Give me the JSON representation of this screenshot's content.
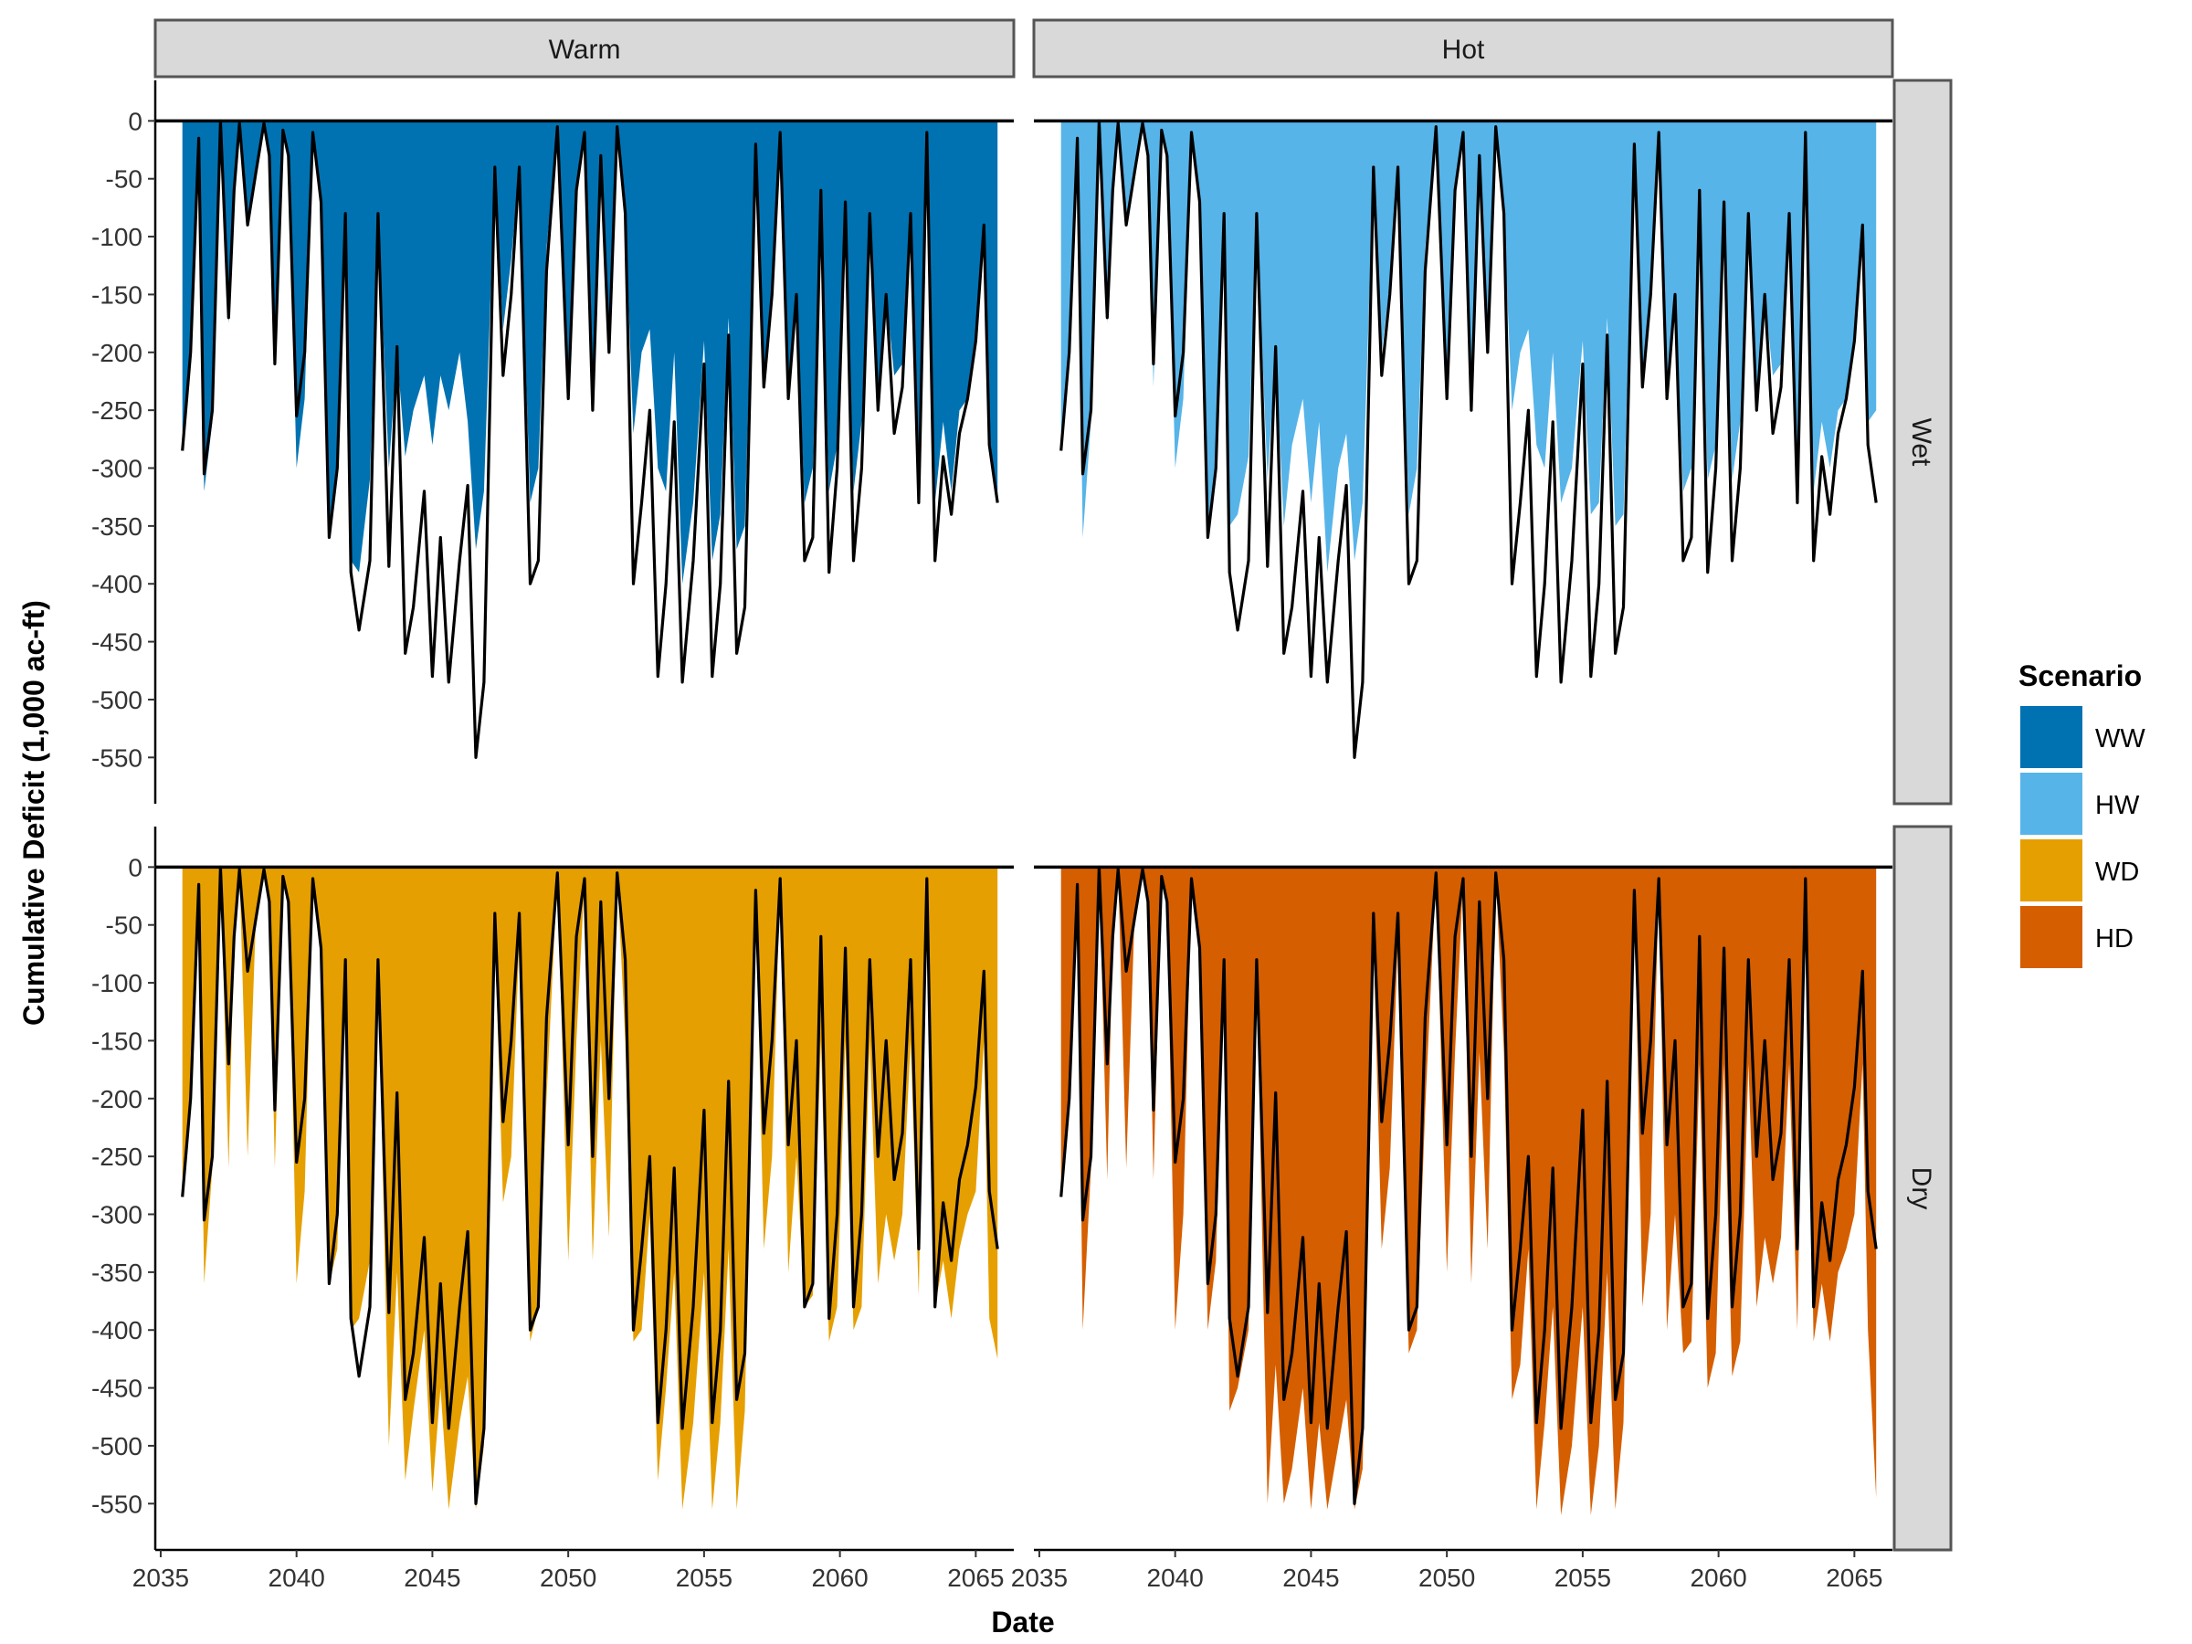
{
  "chart_data": {
    "type": "area",
    "xlabel": "Date",
    "ylabel": "Cumulative Deficit (1,000 ac-ft)",
    "x_tick_labels": [
      "2035",
      "2040",
      "2045",
      "2050",
      "2055",
      "2060",
      "2065"
    ],
    "x_ticks": [
      2035,
      2040,
      2045,
      2050,
      2055,
      2060,
      2065
    ],
    "xlim": [
      2034.8,
      2066.4
    ],
    "ylim": [
      -590,
      35
    ],
    "y_ticks": [
      0,
      -50,
      -100,
      -150,
      -200,
      -250,
      -300,
      -350,
      -400,
      -450,
      -500,
      -550
    ],
    "y_tick_labels": [
      "0",
      "-50",
      "-100",
      "-150",
      "-200",
      "-250",
      "-300",
      "-350",
      "-400",
      "-450",
      "-500",
      "-550"
    ],
    "facet_columns": [
      "Warm",
      "Hot"
    ],
    "facet_rows": [
      "Wet",
      "Dry"
    ],
    "legend": {
      "title": "Scenario",
      "position": "right",
      "items": [
        {
          "label": "WW",
          "color": "#0072B2"
        },
        {
          "label": "HW",
          "color": "#56B4E9"
        },
        {
          "label": "WD",
          "color": "#E69F00"
        },
        {
          "label": "HD",
          "color": "#D55E00"
        }
      ]
    },
    "baseline_line": {
      "color": "#000000",
      "x": [
        2035.8,
        2036.1,
        2036.4,
        2036.6,
        2036.9,
        2037.2,
        2037.5,
        2037.7,
        2037.9,
        2038.2,
        2038.5,
        2038.8,
        2039.0,
        2039.2,
        2039.5,
        2039.7,
        2040.0,
        2040.3,
        2040.6,
        2040.9,
        2041.2,
        2041.5,
        2041.8,
        2042.0,
        2042.3,
        2042.7,
        2043.0,
        2043.4,
        2043.7,
        2044.0,
        2044.3,
        2044.7,
        2045.0,
        2045.3,
        2045.6,
        2046.0,
        2046.3,
        2046.6,
        2046.9,
        2047.3,
        2047.6,
        2047.9,
        2048.2,
        2048.6,
        2048.9,
        2049.2,
        2049.6,
        2050.0,
        2050.3,
        2050.6,
        2050.9,
        2051.2,
        2051.5,
        2051.8,
        2052.1,
        2052.4,
        2052.7,
        2053.0,
        2053.3,
        2053.6,
        2053.9,
        2054.2,
        2054.6,
        2055.0,
        2055.3,
        2055.6,
        2055.9,
        2056.2,
        2056.5,
        2056.9,
        2057.2,
        2057.5,
        2057.8,
        2058.1,
        2058.4,
        2058.7,
        2059.0,
        2059.3,
        2059.6,
        2059.9,
        2060.2,
        2060.5,
        2060.8,
        2061.1,
        2061.4,
        2061.7,
        2062.0,
        2062.3,
        2062.6,
        2062.9,
        2063.2,
        2063.5,
        2063.8,
        2064.1,
        2064.4,
        2064.7,
        2065.0,
        2065.3,
        2065.5,
        2065.8
      ],
      "y": [
        -285,
        -200,
        -15,
        -305,
        -250,
        0,
        -170,
        -60,
        -2,
        -90,
        -45,
        -2,
        -30,
        -210,
        -8,
        -30,
        -255,
        -200,
        -10,
        -70,
        -360,
        -300,
        -80,
        -390,
        -440,
        -380,
        -80,
        -385,
        -195,
        -460,
        -420,
        -320,
        -480,
        -360,
        -485,
        -380,
        -315,
        -550,
        -485,
        -40,
        -220,
        -150,
        -40,
        -400,
        -380,
        -130,
        -5,
        -240,
        -60,
        -10,
        -250,
        -30,
        -200,
        -5,
        -80,
        -400,
        -330,
        -250,
        -480,
        -400,
        -260,
        -485,
        -380,
        -210,
        -480,
        -400,
        -185,
        -460,
        -420,
        -20,
        -230,
        -150,
        -10,
        -240,
        -150,
        -380,
        -360,
        -60,
        -390,
        -300,
        -70,
        -380,
        -300,
        -80,
        -250,
        -150,
        -270,
        -230,
        -80,
        -330,
        -10,
        -380,
        -290,
        -340,
        -270,
        -240,
        -190,
        -90,
        -280,
        -330
      ]
    },
    "series": [
      {
        "name": "WW",
        "facet": "Warm-Wet",
        "color": "#0072B2",
        "x": [
          2035.8,
          2036.1,
          2036.4,
          2036.6,
          2036.9,
          2037.2,
          2037.5,
          2037.7,
          2037.9,
          2038.2,
          2038.5,
          2038.8,
          2039.0,
          2039.2,
          2039.5,
          2039.7,
          2040.0,
          2040.3,
          2040.6,
          2040.9,
          2041.2,
          2041.5,
          2041.8,
          2042.0,
          2042.3,
          2042.7,
          2043.0,
          2043.4,
          2043.7,
          2044.0,
          2044.3,
          2044.7,
          2045.0,
          2045.3,
          2045.6,
          2046.0,
          2046.3,
          2046.6,
          2046.9,
          2047.3,
          2047.6,
          2047.9,
          2048.2,
          2048.6,
          2048.9,
          2049.2,
          2049.6,
          2050.0,
          2050.3,
          2050.6,
          2050.9,
          2051.2,
          2051.5,
          2051.8,
          2052.1,
          2052.4,
          2052.7,
          2053.0,
          2053.3,
          2053.6,
          2053.9,
          2054.2,
          2054.6,
          2055.0,
          2055.3,
          2055.6,
          2055.9,
          2056.2,
          2056.5,
          2056.9,
          2057.2,
          2057.5,
          2057.8,
          2058.1,
          2058.4,
          2058.7,
          2059.0,
          2059.3,
          2059.6,
          2059.9,
          2060.2,
          2060.5,
          2060.8,
          2061.1,
          2061.4,
          2061.7,
          2062.0,
          2062.3,
          2062.6,
          2062.9,
          2063.2,
          2063.5,
          2063.8,
          2064.1,
          2064.4,
          2064.7,
          2065.0,
          2065.3,
          2065.5,
          2065.8
        ],
        "y": [
          -270,
          -200,
          -15,
          -320,
          -260,
          0,
          -175,
          -55,
          -2,
          -90,
          -45,
          -2,
          -30,
          -210,
          -8,
          -30,
          -300,
          -240,
          -10,
          -70,
          -360,
          -300,
          -80,
          -380,
          -390,
          -310,
          -80,
          -300,
          -200,
          -290,
          -250,
          -220,
          -280,
          -220,
          -250,
          -200,
          -260,
          -370,
          -320,
          -40,
          -180,
          -120,
          -40,
          -330,
          -300,
          -110,
          -5,
          -230,
          -60,
          -10,
          -250,
          -30,
          -200,
          -5,
          -80,
          -270,
          -200,
          -180,
          -300,
          -320,
          -200,
          -400,
          -330,
          -190,
          -380,
          -340,
          -170,
          -370,
          -350,
          -20,
          -230,
          -150,
          -10,
          -240,
          -150,
          -330,
          -300,
          -60,
          -320,
          -280,
          -70,
          -320,
          -260,
          -80,
          -250,
          -150,
          -220,
          -210,
          -80,
          -300,
          -10,
          -330,
          -260,
          -320,
          -250,
          -240,
          -190,
          -90,
          -280,
          -330
        ]
      },
      {
        "name": "HW",
        "facet": "Hot-Wet",
        "color": "#56B4E9",
        "x": [
          2035.8,
          2036.1,
          2036.4,
          2036.6,
          2036.9,
          2037.2,
          2037.5,
          2037.7,
          2037.9,
          2038.2,
          2038.5,
          2038.8,
          2039.0,
          2039.2,
          2039.5,
          2039.7,
          2040.0,
          2040.3,
          2040.6,
          2040.9,
          2041.2,
          2041.5,
          2041.8,
          2042.0,
          2042.3,
          2042.7,
          2043.0,
          2043.4,
          2043.7,
          2044.0,
          2044.3,
          2044.7,
          2045.0,
          2045.3,
          2045.6,
          2046.0,
          2046.3,
          2046.6,
          2046.9,
          2047.3,
          2047.6,
          2047.9,
          2048.2,
          2048.6,
          2048.9,
          2049.2,
          2049.6,
          2050.0,
          2050.3,
          2050.6,
          2050.9,
          2051.2,
          2051.5,
          2051.8,
          2052.1,
          2052.4,
          2052.7,
          2053.0,
          2053.3,
          2053.6,
          2053.9,
          2054.2,
          2054.6,
          2055.0,
          2055.3,
          2055.6,
          2055.9,
          2056.2,
          2056.5,
          2056.9,
          2057.2,
          2057.5,
          2057.8,
          2058.1,
          2058.4,
          2058.7,
          2059.0,
          2059.3,
          2059.6,
          2059.9,
          2060.2,
          2060.5,
          2060.8,
          2061.1,
          2061.4,
          2061.7,
          2062.0,
          2062.3,
          2062.6,
          2062.9,
          2063.2,
          2063.5,
          2063.8,
          2064.1,
          2064.4,
          2064.7,
          2065.0,
          2065.3,
          2065.5,
          2065.8
        ],
        "y": [
          -270,
          -200,
          -15,
          -360,
          -260,
          0,
          -175,
          -55,
          -2,
          -90,
          -45,
          -2,
          -30,
          -230,
          -8,
          -30,
          -300,
          -240,
          -10,
          -70,
          -350,
          -300,
          -80,
          -350,
          -340,
          -290,
          -80,
          -310,
          -200,
          -350,
          -280,
          -240,
          -330,
          -260,
          -390,
          -300,
          -270,
          -380,
          -330,
          -40,
          -200,
          -140,
          -40,
          -340,
          -300,
          -110,
          -5,
          -230,
          -60,
          -10,
          -250,
          -30,
          -200,
          -5,
          -80,
          -250,
          -200,
          -180,
          -280,
          -300,
          -200,
          -330,
          -300,
          -190,
          -340,
          -330,
          -170,
          -350,
          -340,
          -20,
          -230,
          -150,
          -10,
          -240,
          -150,
          -320,
          -300,
          -60,
          -310,
          -280,
          -70,
          -310,
          -260,
          -80,
          -250,
          -150,
          -220,
          -210,
          -80,
          -300,
          -10,
          -320,
          -260,
          -300,
          -250,
          -240,
          -190,
          -90,
          -260,
          -250
        ]
      },
      {
        "name": "WD",
        "facet": "Warm-Dry",
        "color": "#E69F00",
        "x": [
          2035.8,
          2036.1,
          2036.4,
          2036.6,
          2036.9,
          2037.2,
          2037.5,
          2037.7,
          2037.9,
          2038.2,
          2038.5,
          2038.8,
          2039.0,
          2039.2,
          2039.5,
          2039.7,
          2040.0,
          2040.3,
          2040.6,
          2040.9,
          2041.2,
          2041.5,
          2041.8,
          2042.0,
          2042.3,
          2042.7,
          2043.0,
          2043.4,
          2043.7,
          2044.0,
          2044.3,
          2044.7,
          2045.0,
          2045.3,
          2045.6,
          2046.0,
          2046.3,
          2046.6,
          2046.9,
          2047.3,
          2047.6,
          2047.9,
          2048.2,
          2048.6,
          2048.9,
          2049.2,
          2049.6,
          2050.0,
          2050.3,
          2050.6,
          2050.9,
          2051.2,
          2051.5,
          2051.8,
          2052.1,
          2052.4,
          2052.7,
          2053.0,
          2053.3,
          2053.6,
          2053.9,
          2054.2,
          2054.6,
          2055.0,
          2055.3,
          2055.6,
          2055.9,
          2056.2,
          2056.5,
          2056.9,
          2057.2,
          2057.5,
          2057.8,
          2058.1,
          2058.4,
          2058.7,
          2059.0,
          2059.3,
          2059.6,
          2059.9,
          2060.2,
          2060.5,
          2060.8,
          2061.1,
          2061.4,
          2061.7,
          2062.0,
          2062.3,
          2062.6,
          2062.9,
          2063.2,
          2063.5,
          2063.8,
          2064.1,
          2064.4,
          2064.7,
          2065.0,
          2065.3,
          2065.5,
          2065.8
        ],
        "y": [
          -270,
          -200,
          -15,
          -360,
          -260,
          0,
          -260,
          -55,
          -2,
          -250,
          -45,
          -2,
          -30,
          -260,
          -8,
          -30,
          -360,
          -280,
          -10,
          -70,
          -360,
          -330,
          -80,
          -400,
          -390,
          -340,
          -80,
          -500,
          -350,
          -530,
          -470,
          -400,
          -540,
          -450,
          -555,
          -480,
          -440,
          -555,
          -500,
          -60,
          -290,
          -250,
          -60,
          -410,
          -380,
          -200,
          -5,
          -340,
          -150,
          -10,
          -340,
          -150,
          -320,
          -5,
          -150,
          -410,
          -400,
          -300,
          -530,
          -450,
          -350,
          -555,
          -480,
          -350,
          -555,
          -480,
          -330,
          -555,
          -470,
          -20,
          -330,
          -250,
          -10,
          -350,
          -250,
          -380,
          -370,
          -150,
          -410,
          -380,
          -150,
          -400,
          -380,
          -150,
          -360,
          -300,
          -340,
          -300,
          -150,
          -370,
          -10,
          -380,
          -340,
          -390,
          -330,
          -300,
          -280,
          -150,
          -390,
          -425
        ]
      },
      {
        "name": "HD",
        "facet": "Hot-Dry",
        "color": "#D55E00",
        "x": [
          2035.8,
          2036.1,
          2036.4,
          2036.6,
          2036.9,
          2037.2,
          2037.5,
          2037.7,
          2037.9,
          2038.2,
          2038.5,
          2038.8,
          2039.0,
          2039.2,
          2039.5,
          2039.7,
          2040.0,
          2040.3,
          2040.6,
          2040.9,
          2041.2,
          2041.5,
          2041.8,
          2042.0,
          2042.3,
          2042.7,
          2043.0,
          2043.4,
          2043.7,
          2044.0,
          2044.3,
          2044.7,
          2045.0,
          2045.3,
          2045.6,
          2046.0,
          2046.3,
          2046.6,
          2046.9,
          2047.3,
          2047.6,
          2047.9,
          2048.2,
          2048.6,
          2048.9,
          2049.2,
          2049.6,
          2050.0,
          2050.3,
          2050.6,
          2050.9,
          2051.2,
          2051.5,
          2051.8,
          2052.1,
          2052.4,
          2052.7,
          2053.0,
          2053.3,
          2053.6,
          2053.9,
          2054.2,
          2054.6,
          2055.0,
          2055.3,
          2055.6,
          2055.9,
          2056.2,
          2056.5,
          2056.9,
          2057.2,
          2057.5,
          2057.8,
          2058.1,
          2058.4,
          2058.7,
          2059.0,
          2059.3,
          2059.6,
          2059.9,
          2060.2,
          2060.5,
          2060.8,
          2061.1,
          2061.4,
          2061.7,
          2062.0,
          2062.3,
          2062.6,
          2062.9,
          2063.2,
          2063.5,
          2063.8,
          2064.1,
          2064.4,
          2064.7,
          2065.0,
          2065.3,
          2065.5,
          2065.8
        ],
        "y": [
          -270,
          -200,
          -15,
          -400,
          -260,
          0,
          -270,
          -55,
          -2,
          -260,
          -45,
          -2,
          -30,
          -270,
          -8,
          -30,
          -400,
          -300,
          -10,
          -70,
          -400,
          -340,
          -80,
          -470,
          -450,
          -400,
          -80,
          -550,
          -430,
          -550,
          -520,
          -450,
          -555,
          -480,
          -555,
          -500,
          -460,
          -555,
          -520,
          -60,
          -330,
          -260,
          -60,
          -420,
          -400,
          -210,
          -5,
          -350,
          -160,
          -10,
          -360,
          -160,
          -330,
          -5,
          -160,
          -460,
          -430,
          -330,
          -555,
          -480,
          -380,
          -560,
          -500,
          -380,
          -560,
          -500,
          -350,
          -555,
          -480,
          -20,
          -380,
          -300,
          -10,
          -400,
          -300,
          -420,
          -410,
          -170,
          -450,
          -420,
          -170,
          -440,
          -410,
          -170,
          -380,
          -320,
          -360,
          -320,
          -170,
          -400,
          -10,
          -410,
          -360,
          -410,
          -350,
          -330,
          -300,
          -170,
          -400,
          -545
        ]
      }
    ]
  }
}
